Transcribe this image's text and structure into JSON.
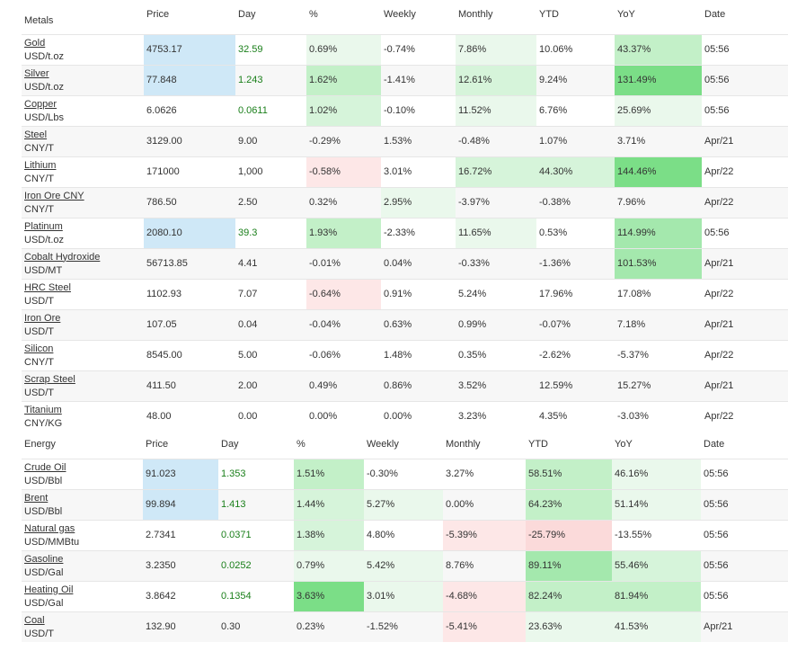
{
  "metals": {
    "section_label": "Metals",
    "columns": [
      "Price",
      "Day",
      "%",
      "Weekly",
      "Monthly",
      "YTD",
      "YoY",
      "Date"
    ],
    "rows": [
      {
        "name": "Gold",
        "unit": "USD/t.oz",
        "price": "4753.17",
        "day": "32.59",
        "pct": "0.69%",
        "weekly": "-0.74%",
        "monthly": "7.86%",
        "ytd": "10.06%",
        "yoy": "43.37%",
        "date": "05:56"
      },
      {
        "name": "Silver",
        "unit": "USD/t.oz",
        "price": "77.848",
        "day": "1.243",
        "pct": "1.62%",
        "weekly": "-1.41%",
        "monthly": "12.61%",
        "ytd": "9.24%",
        "yoy": "131.49%",
        "date": "05:56"
      },
      {
        "name": "Copper",
        "unit": "USD/Lbs",
        "price": "6.0626",
        "day": "0.0611",
        "pct": "1.02%",
        "weekly": "-0.10%",
        "monthly": "11.52%",
        "ytd": "6.76%",
        "yoy": "25.69%",
        "date": "05:56"
      },
      {
        "name": "Steel",
        "unit": "CNY/T",
        "price": "3129.00",
        "day": "9.00",
        "pct": "-0.29%",
        "weekly": "1.53%",
        "monthly": "-0.48%",
        "ytd": "1.07%",
        "yoy": "3.71%",
        "date": "Apr/21"
      },
      {
        "name": "Lithium",
        "unit": "CNY/T",
        "price": "171000",
        "day": "1,000",
        "pct": "-0.58%",
        "weekly": "3.01%",
        "monthly": "16.72%",
        "ytd": "44.30%",
        "yoy": "144.46%",
        "date": "Apr/22"
      },
      {
        "name": "Iron Ore CNY",
        "unit": "CNY/T",
        "price": "786.50",
        "day": "2.50",
        "pct": "0.32%",
        "weekly": "2.95%",
        "monthly": "-3.97%",
        "ytd": "-0.38%",
        "yoy": "7.96%",
        "date": "Apr/22"
      },
      {
        "name": "Platinum",
        "unit": "USD/t.oz",
        "price": "2080.10",
        "day": "39.3",
        "pct": "1.93%",
        "weekly": "-2.33%",
        "monthly": "11.65%",
        "ytd": "0.53%",
        "yoy": "114.99%",
        "date": "05:56"
      },
      {
        "name": "Cobalt Hydroxide",
        "unit": "USD/MT",
        "price": "56713.85",
        "day": "4.41",
        "pct": "-0.01%",
        "weekly": "0.04%",
        "monthly": "-0.33%",
        "ytd": "-1.36%",
        "yoy": "101.53%",
        "date": "Apr/21"
      },
      {
        "name": "HRC Steel",
        "unit": "USD/T",
        "price": "1102.93",
        "day": "7.07",
        "pct": "-0.64%",
        "weekly": "0.91%",
        "monthly": "5.24%",
        "ytd": "17.96%",
        "yoy": "17.08%",
        "date": "Apr/22"
      },
      {
        "name": "Iron Ore",
        "unit": "USD/T",
        "price": "107.05",
        "day": "0.04",
        "pct": "-0.04%",
        "weekly": "0.63%",
        "monthly": "0.99%",
        "ytd": "-0.07%",
        "yoy": "7.18%",
        "date": "Apr/21"
      },
      {
        "name": "Silicon",
        "unit": "CNY/T",
        "price": "8545.00",
        "day": "5.00",
        "pct": "-0.06%",
        "weekly": "1.48%",
        "monthly": "0.35%",
        "ytd": "-2.62%",
        "yoy": "-5.37%",
        "date": "Apr/22"
      },
      {
        "name": "Scrap Steel",
        "unit": "USD/T",
        "price": "411.50",
        "day": "2.00",
        "pct": "0.49%",
        "weekly": "0.86%",
        "monthly": "3.52%",
        "ytd": "12.59%",
        "yoy": "15.27%",
        "date": "Apr/21"
      },
      {
        "name": "Titanium",
        "unit": "CNY/KG",
        "price": "48.00",
        "day": "0.00",
        "pct": "0.00%",
        "weekly": "0.00%",
        "monthly": "3.23%",
        "ytd": "4.35%",
        "yoy": "-3.03%",
        "date": "Apr/22"
      }
    ]
  },
  "energy": {
    "section_label": "Energy",
    "columns": [
      "Price",
      "Day",
      "%",
      "Weekly",
      "Monthly",
      "YTD",
      "YoY",
      "Date"
    ],
    "rows": [
      {
        "name": "Crude Oil",
        "unit": "USD/Bbl",
        "price": "91.023",
        "day": "1.353",
        "pct": "1.51%",
        "weekly": "-0.30%",
        "monthly": "3.27%",
        "ytd": "58.51%",
        "yoy": "46.16%",
        "date": "05:56"
      },
      {
        "name": "Brent",
        "unit": "USD/Bbl",
        "price": "99.894",
        "day": "1.413",
        "pct": "1.44%",
        "weekly": "5.27%",
        "monthly": "0.00%",
        "ytd": "64.23%",
        "yoy": "51.14%",
        "date": "05:56"
      },
      {
        "name": "Natural gas",
        "unit": "USD/MMBtu",
        "price": "2.7341",
        "day": "0.0371",
        "pct": "1.38%",
        "weekly": "4.80%",
        "monthly": "-5.39%",
        "ytd": "-25.79%",
        "yoy": "-13.55%",
        "date": "05:56"
      },
      {
        "name": "Gasoline",
        "unit": "USD/Gal",
        "price": "3.2350",
        "day": "0.0252",
        "pct": "0.79%",
        "weekly": "5.42%",
        "monthly": "8.76%",
        "ytd": "89.11%",
        "yoy": "55.46%",
        "date": "05:56"
      },
      {
        "name": "Heating Oil",
        "unit": "USD/Gal",
        "price": "3.8642",
        "day": "0.1354",
        "pct": "3.63%",
        "weekly": "3.01%",
        "monthly": "-4.68%",
        "ytd": "82.24%",
        "yoy": "81.94%",
        "date": "05:56"
      },
      {
        "name": "Coal",
        "unit": "USD/T",
        "price": "132.90",
        "day": "0.30",
        "pct": "0.23%",
        "weekly": "-1.52%",
        "monthly": "-5.41%",
        "ytd": "23.63%",
        "yoy": "41.53%",
        "date": "Apr/21"
      }
    ]
  }
}
